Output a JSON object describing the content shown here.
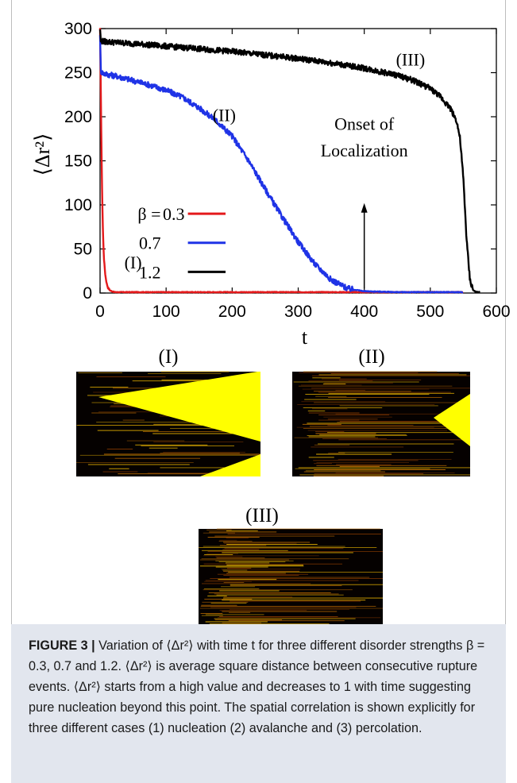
{
  "chart_data": {
    "type": "line",
    "title": "",
    "xlabel": "t",
    "ylabel": "⟨Δr²⟩",
    "xlim": [
      0,
      600
    ],
    "ylim": [
      0,
      300
    ],
    "xticks": [
      0,
      100,
      200,
      300,
      400,
      500,
      600
    ],
    "yticks": [
      0,
      50,
      100,
      150,
      200,
      250,
      300
    ],
    "grid": false,
    "legend_position": "center-left",
    "legend_title": "β =",
    "series": [
      {
        "name": "0.3",
        "color": "#e41a1c",
        "label": "(I)",
        "x": [
          0,
          1,
          2,
          3,
          4,
          5,
          6,
          8,
          10,
          12,
          15,
          18,
          22,
          30,
          50,
          100,
          200,
          300,
          400,
          500,
          550
        ],
        "y": [
          300,
          240,
          170,
          120,
          80,
          55,
          38,
          20,
          11,
          6,
          3,
          2,
          1,
          1,
          1,
          1,
          1,
          1,
          1,
          1,
          1
        ]
      },
      {
        "name": "0.7",
        "color": "#1f33e6",
        "label": "(II)",
        "x": [
          0,
          1,
          5,
          25,
          50,
          75,
          100,
          125,
          150,
          175,
          200,
          225,
          250,
          275,
          300,
          325,
          350,
          375,
          400,
          450,
          500,
          550
        ],
        "y": [
          295,
          252,
          249,
          246,
          241,
          236,
          230,
          222,
          210,
          196,
          178,
          150,
          118,
          87,
          58,
          33,
          15,
          5,
          2,
          1,
          1,
          1
        ]
      },
      {
        "name": "1.2",
        "color": "#000000",
        "label": "(III)",
        "x": [
          0,
          1,
          10,
          50,
          100,
          150,
          200,
          250,
          300,
          350,
          400,
          450,
          475,
          500,
          515,
          530,
          540,
          545,
          550,
          555,
          560,
          565,
          570,
          575
        ],
        "y": [
          300,
          286,
          285,
          283,
          280,
          277,
          274,
          270,
          266,
          261,
          255,
          247,
          241,
          232,
          223,
          210,
          195,
          175,
          130,
          60,
          15,
          3,
          1,
          1
        ]
      }
    ],
    "annotations": [
      {
        "text": "Onset of",
        "text2": "Localization",
        "arrow_x": 400,
        "arrow_y_from": 5,
        "arrow_y_to": 102
      }
    ]
  },
  "panels": {
    "panel1_label": "(I)",
    "panel2_label": "(II)",
    "panel3_label": "(III)",
    "fill_color": "#ffff00",
    "background_color": "#000000"
  },
  "caption": {
    "figure_label": "FIGURE 3 |",
    "text": " Variation of ⟨Δr²⟩ with time t for three different disorder strengths β = 0.3, 0.7 and 1.2. ⟨Δr²⟩ is average square distance between consecutive rupture events. ⟨Δr²⟩ starts from a high value and decreases to 1 with time suggesting pure nucleation beyond this point. The spatial correlation is shown explicitly for three different cases (1) nucleation (2) avalanche and (3) percolation."
  }
}
